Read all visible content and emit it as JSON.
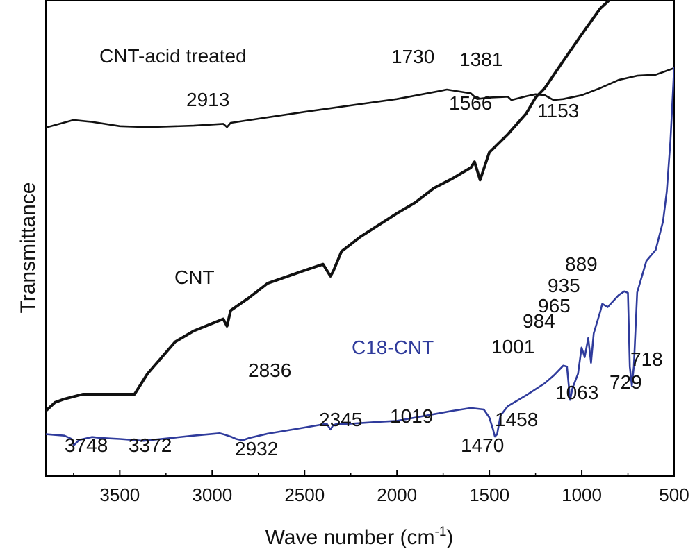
{
  "chart_data": {
    "type": "line",
    "xlabel": "Wave number (cm",
    "xlabel_sup": "-1",
    "xlabel_close": ")",
    "ylabel": "Transmittance",
    "xlim": [
      3900,
      500
    ],
    "x_reversed": true,
    "xticks": [
      3500,
      3000,
      2500,
      2000,
      1500,
      1000,
      500
    ],
    "xtick_labels": [
      "3500",
      "3000",
      "2500",
      "2000",
      "1500",
      "1000",
      "500"
    ],
    "y_ticks_shown": false,
    "grid": false,
    "series": [
      {
        "name": "CNT-acid treated",
        "color": "#111111",
        "x": [
          3900,
          3750,
          3650,
          3500,
          3350,
          3100,
          2940,
          2920,
          2900,
          2500,
          2000,
          1780,
          1730,
          1600,
          1566,
          1500,
          1400,
          1381,
          1300,
          1250,
          1200,
          1153,
          1100,
          1000,
          900,
          800,
          700,
          600,
          500
        ],
        "y": [
          0.732,
          0.748,
          0.744,
          0.735,
          0.733,
          0.736,
          0.74,
          0.733,
          0.742,
          0.765,
          0.792,
          0.808,
          0.812,
          0.804,
          0.792,
          0.795,
          0.797,
          0.79,
          0.798,
          0.802,
          0.8,
          0.79,
          0.792,
          0.8,
          0.815,
          0.832,
          0.841,
          0.843,
          0.857
        ]
      },
      {
        "name": "CNT",
        "color": "#111111",
        "x": [
          3900,
          3850,
          3800,
          3700,
          3600,
          3500,
          3420,
          3350,
          3200,
          3100,
          2940,
          2920,
          2900,
          2800,
          2700,
          2500,
          2400,
          2360,
          2345,
          2300,
          2200,
          2000,
          1900,
          1800,
          1700,
          1600,
          1580,
          1550,
          1500,
          1400,
          1300,
          1250,
          1200,
          1100,
          1000,
          900,
          850
        ],
        "y": [
          0.137,
          0.155,
          0.162,
          0.172,
          0.172,
          0.172,
          0.172,
          0.215,
          0.282,
          0.305,
          0.33,
          0.315,
          0.348,
          0.375,
          0.405,
          0.432,
          0.445,
          0.42,
          0.43,
          0.472,
          0.502,
          0.552,
          0.575,
          0.605,
          0.625,
          0.648,
          0.66,
          0.622,
          0.68,
          0.718,
          0.762,
          0.795,
          0.815,
          0.872,
          0.928,
          0.982,
          1.0
        ]
      },
      {
        "name": "C18-CNT",
        "color": "#2f3b9c",
        "x": [
          3900,
          3800,
          3760,
          3748,
          3720,
          3650,
          3600,
          3500,
          3400,
          3372,
          3300,
          3100,
          2960,
          2932,
          2900,
          2870,
          2836,
          2800,
          2700,
          2500,
          2380,
          2360,
          2345,
          2330,
          2250,
          2100,
          2000,
          1900,
          1800,
          1700,
          1600,
          1530,
          1500,
          1480,
          1470,
          1458,
          1440,
          1400,
          1300,
          1200,
          1150,
          1100,
          1080,
          1063,
          1050,
          1020,
          1001,
          984,
          965,
          950,
          935,
          900,
          889,
          860,
          800,
          770,
          750,
          740,
          729,
          718,
          700,
          650,
          600,
          560,
          540,
          520,
          505,
          500
        ],
        "y": [
          0.088,
          0.085,
          0.078,
          0.065,
          0.076,
          0.082,
          0.08,
          0.078,
          0.075,
          0.074,
          0.077,
          0.085,
          0.09,
          0.087,
          0.083,
          0.078,
          0.075,
          0.08,
          0.089,
          0.102,
          0.11,
          0.098,
          0.107,
          0.109,
          0.11,
          0.114,
          0.116,
          0.123,
          0.13,
          0.137,
          0.143,
          0.14,
          0.123,
          0.098,
          0.083,
          0.088,
          0.127,
          0.147,
          0.17,
          0.195,
          0.212,
          0.232,
          0.23,
          0.16,
          0.185,
          0.215,
          0.27,
          0.25,
          0.29,
          0.238,
          0.3,
          0.345,
          0.362,
          0.355,
          0.38,
          0.388,
          0.385,
          0.23,
          0.19,
          0.23,
          0.386,
          0.452,
          0.475,
          0.535,
          0.598,
          0.705,
          0.82,
          0.86
        ]
      }
    ],
    "annotations": {
      "acid_title": "CNT-acid treated",
      "cnt_title": "CNT",
      "c18_title": "C18-CNT",
      "p2913": "2913",
      "p1730": "1730",
      "p1381": "1381",
      "p1566": "1566",
      "p1153": "1153",
      "p889": "889",
      "p935": "935",
      "p965": "965",
      "p984": "984",
      "p1001": "1001",
      "p2836": "2836",
      "p718": "718",
      "p1063": "1063",
      "p729": "729",
      "p2345": "2345",
      "p1019": "1019",
      "p1458": "1458",
      "p3748": "3748",
      "p3372": "3372",
      "p2932": "2932",
      "p1470": "1470"
    }
  }
}
